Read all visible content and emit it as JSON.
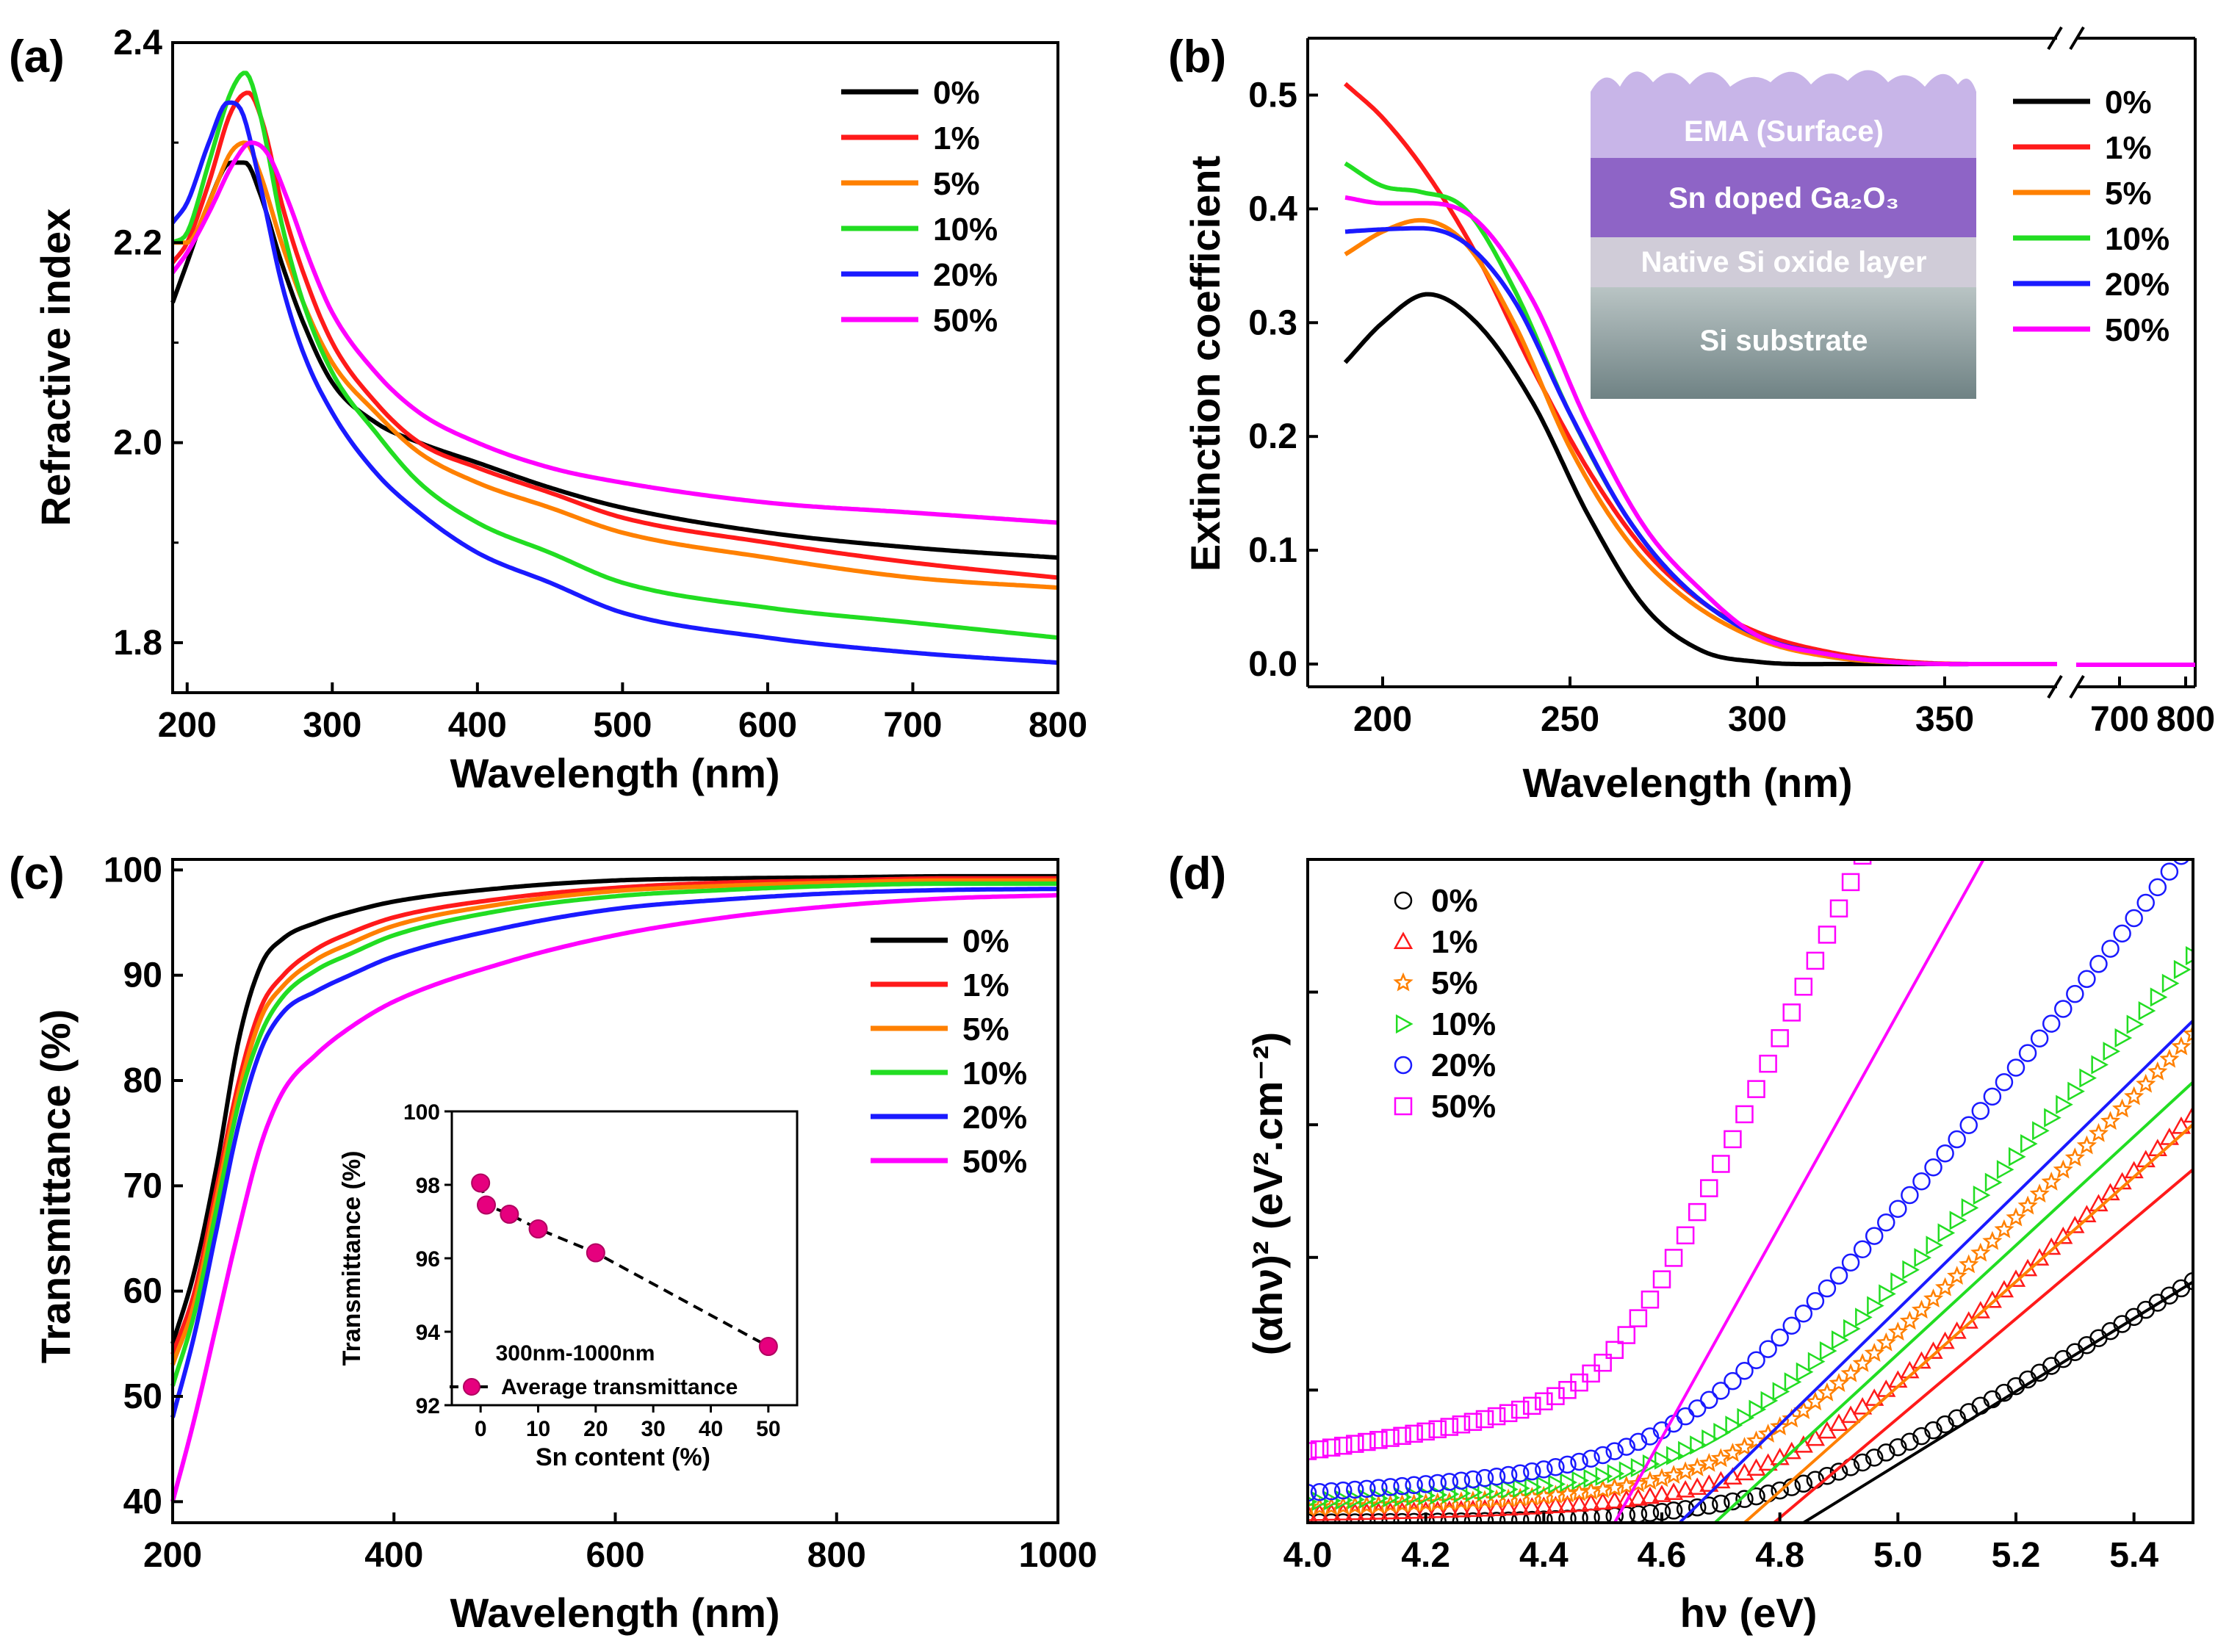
{
  "colors": {
    "0%": "#000000",
    "1%": "#ff1a1a",
    "5%": "#ff8000",
    "10%": "#22dd22",
    "20%": "#1a1aff",
    "50%": "#ff00ff"
  },
  "chart_data": [
    {
      "panel": "(a)",
      "type": "line",
      "xlabel": "Wavelength (nm)",
      "ylabel": "Refractive index",
      "xlim": [
        190,
        800
      ],
      "ylim": [
        1.75,
        2.4
      ],
      "xticks": [
        "200",
        "300",
        "400",
        "500",
        "600",
        "700",
        "800"
      ],
      "yticks": [
        "1.8",
        "2.0",
        "2.2",
        "2.4"
      ],
      "legend": [
        "0%",
        "1%",
        "5%",
        "10%",
        "20%",
        "50%"
      ],
      "series": [
        {
          "name": "0%",
          "x": [
            190,
            200,
            215,
            230,
            240,
            250,
            265,
            280,
            300,
            330,
            360,
            400,
            450,
            500,
            600,
            700,
            800
          ],
          "y": [
            2.14,
            2.18,
            2.24,
            2.28,
            2.28,
            2.25,
            2.18,
            2.12,
            2.06,
            2.02,
            2.0,
            1.98,
            1.955,
            1.935,
            1.91,
            1.895,
            1.885
          ]
        },
        {
          "name": "1%",
          "x": [
            190,
            200,
            215,
            230,
            242,
            252,
            265,
            280,
            300,
            330,
            360,
            400,
            450,
            500,
            600,
            700,
            800
          ],
          "y": [
            2.18,
            2.2,
            2.26,
            2.33,
            2.35,
            2.32,
            2.24,
            2.17,
            2.1,
            2.04,
            2.0,
            1.975,
            1.95,
            1.925,
            1.9,
            1.88,
            1.865
          ]
        },
        {
          "name": "5%",
          "x": [
            190,
            200,
            215,
            230,
            240,
            250,
            265,
            280,
            300,
            330,
            360,
            400,
            450,
            500,
            600,
            700,
            800
          ],
          "y": [
            2.2,
            2.2,
            2.24,
            2.29,
            2.3,
            2.27,
            2.2,
            2.14,
            2.08,
            2.03,
            1.99,
            1.96,
            1.935,
            1.91,
            1.885,
            1.865,
            1.855
          ]
        },
        {
          "name": "10%",
          "x": [
            190,
            200,
            215,
            230,
            240,
            250,
            265,
            280,
            300,
            330,
            360,
            400,
            450,
            500,
            600,
            700,
            800
          ],
          "y": [
            2.2,
            2.21,
            2.28,
            2.35,
            2.37,
            2.33,
            2.22,
            2.14,
            2.07,
            2.01,
            1.96,
            1.92,
            1.89,
            1.86,
            1.835,
            1.82,
            1.805
          ]
        },
        {
          "name": "20%",
          "x": [
            190,
            200,
            215,
            228,
            238,
            250,
            265,
            280,
            300,
            330,
            360,
            400,
            450,
            500,
            600,
            700,
            800
          ],
          "y": [
            2.22,
            2.24,
            2.3,
            2.34,
            2.33,
            2.26,
            2.16,
            2.09,
            2.03,
            1.97,
            1.93,
            1.89,
            1.86,
            1.83,
            1.805,
            1.79,
            1.78
          ]
        },
        {
          "name": "50%",
          "x": [
            190,
            200,
            215,
            232,
            244,
            255,
            270,
            285,
            300,
            330,
            360,
            400,
            450,
            500,
            600,
            700,
            800
          ],
          "y": [
            2.17,
            2.19,
            2.23,
            2.28,
            2.3,
            2.29,
            2.24,
            2.18,
            2.13,
            2.07,
            2.03,
            2.0,
            1.975,
            1.96,
            1.94,
            1.93,
            1.92
          ]
        }
      ]
    },
    {
      "panel": "(b)",
      "type": "line",
      "xlabel": "Wavelength (nm)",
      "ylabel": "Extinction coefficient",
      "xlim": [
        180,
        380
      ],
      "ylim": [
        -0.02,
        0.55
      ],
      "broken_axis": true,
      "xticks": [
        "200",
        "250",
        "300",
        "350",
        "700",
        "800"
      ],
      "yticks": [
        "0.0",
        "0.1",
        "0.2",
        "0.3",
        "0.4",
        "0.5"
      ],
      "legend": [
        "0%",
        "1%",
        "5%",
        "10%",
        "20%",
        "50%"
      ],
      "inset_layers": [
        "EMA (Surface)",
        "Sn doped Ga₂O₃",
        "Native Si oxide layer",
        "Si substrate"
      ],
      "series": [
        {
          "name": "0%",
          "x": [
            190,
            200,
            212,
            225,
            240,
            255,
            270,
            285,
            300,
            320,
            380
          ],
          "y": [
            0.265,
            0.3,
            0.325,
            0.3,
            0.23,
            0.13,
            0.05,
            0.012,
            0.002,
            0.0,
            0.0
          ]
        },
        {
          "name": "1%",
          "x": [
            190,
            200,
            212,
            225,
            240,
            255,
            270,
            285,
            300,
            320,
            340,
            360,
            380
          ],
          "y": [
            0.51,
            0.48,
            0.43,
            0.36,
            0.26,
            0.17,
            0.1,
            0.055,
            0.028,
            0.01,
            0.002,
            0.0,
            0.0
          ]
        },
        {
          "name": "5%",
          "x": [
            190,
            200,
            210,
            222,
            235,
            250,
            265,
            280,
            300,
            320,
            340,
            360,
            380
          ],
          "y": [
            0.36,
            0.38,
            0.39,
            0.37,
            0.3,
            0.19,
            0.11,
            0.06,
            0.022,
            0.006,
            0.001,
            0.0,
            0.0
          ]
        },
        {
          "name": "10%",
          "x": [
            190,
            200,
            210,
            222,
            235,
            250,
            265,
            280,
            300,
            320,
            340,
            360,
            380
          ],
          "y": [
            0.44,
            0.42,
            0.415,
            0.4,
            0.33,
            0.22,
            0.13,
            0.07,
            0.025,
            0.008,
            0.001,
            0.0,
            0.0
          ]
        },
        {
          "name": "20%",
          "x": [
            190,
            200,
            210,
            222,
            235,
            250,
            265,
            280,
            300,
            320,
            340,
            360,
            380
          ],
          "y": [
            0.38,
            0.382,
            0.383,
            0.37,
            0.32,
            0.22,
            0.13,
            0.07,
            0.025,
            0.008,
            0.001,
            0.0,
            0.0
          ]
        },
        {
          "name": "50%",
          "x": [
            190,
            200,
            212,
            225,
            240,
            255,
            270,
            285,
            300,
            320,
            340,
            360,
            380
          ],
          "y": [
            0.41,
            0.405,
            0.405,
            0.39,
            0.32,
            0.21,
            0.12,
            0.065,
            0.025,
            0.008,
            0.001,
            0.0,
            0.0
          ]
        }
      ]
    },
    {
      "panel": "(c)",
      "type": "line",
      "xlabel": "Wavelength (nm)",
      "ylabel": "Transmittance (%)",
      "xlim": [
        200,
        1000
      ],
      "ylim": [
        38,
        101
      ],
      "xticks": [
        "200",
        "400",
        "600",
        "800",
        "1000"
      ],
      "yticks": [
        "40",
        "50",
        "60",
        "70",
        "80",
        "90",
        "100"
      ],
      "legend": [
        "0%",
        "1%",
        "5%",
        "10%",
        "20%",
        "50%"
      ],
      "series": [
        {
          "name": "0%",
          "x": [
            200,
            220,
            240,
            260,
            280,
            300,
            330,
            360,
            400,
            500,
            600,
            700,
            800,
            900,
            1000
          ],
          "y": [
            55,
            62,
            72,
            84,
            91,
            93.5,
            95,
            96,
            97,
            98.3,
            99,
            99.2,
            99.3,
            99.4,
            99.4
          ]
        },
        {
          "name": "1%",
          "x": [
            200,
            220,
            240,
            260,
            280,
            300,
            330,
            360,
            400,
            500,
            600,
            700,
            800,
            900,
            1000
          ],
          "y": [
            54,
            60,
            70,
            80,
            87,
            90,
            92.5,
            94,
            95.5,
            97.3,
            98.3,
            98.8,
            99,
            99.2,
            99.2
          ]
        },
        {
          "name": "5%",
          "x": [
            200,
            220,
            240,
            260,
            280,
            300,
            330,
            360,
            400,
            500,
            600,
            700,
            800,
            900,
            1000
          ],
          "y": [
            53,
            59,
            69,
            79,
            86,
            89,
            91.5,
            93,
            94.7,
            96.8,
            98,
            98.5,
            98.8,
            99,
            99
          ]
        },
        {
          "name": "10%",
          "x": [
            200,
            220,
            240,
            260,
            280,
            300,
            330,
            360,
            400,
            500,
            600,
            700,
            800,
            900,
            1000
          ],
          "y": [
            51,
            58,
            68,
            78,
            84.5,
            88,
            90.5,
            92,
            93.8,
            96.2,
            97.5,
            98.1,
            98.5,
            98.7,
            98.7
          ]
        },
        {
          "name": "20%",
          "x": [
            200,
            220,
            240,
            260,
            280,
            300,
            330,
            360,
            400,
            500,
            600,
            700,
            800,
            900,
            1000
          ],
          "y": [
            48,
            56,
            66,
            76,
            83,
            86.5,
            88.5,
            90,
            91.8,
            94.5,
            96.3,
            97.2,
            97.8,
            98.1,
            98.2
          ]
        },
        {
          "name": "50%",
          "x": [
            200,
            220,
            240,
            260,
            280,
            300,
            330,
            360,
            400,
            500,
            600,
            700,
            800,
            900,
            1000
          ],
          "y": [
            40,
            48,
            57,
            66,
            74,
            79,
            82.5,
            85,
            87.5,
            91.2,
            93.8,
            95.5,
            96.6,
            97.3,
            97.6
          ]
        }
      ],
      "inset": {
        "type": "scatter",
        "xlabel": "Sn content (%)",
        "ylabel": "Transmittance (%)",
        "xlim": [
          -5,
          55
        ],
        "ylim": [
          92,
          100
        ],
        "xticks": [
          "0",
          "10",
          "20",
          "30",
          "40",
          "50"
        ],
        "yticks": [
          "92",
          "94",
          "96",
          "98",
          "100"
        ],
        "annotation": "300nm-1000nm",
        "legend": "Average transmittance",
        "x": [
          0,
          1,
          5,
          10,
          20,
          50
        ],
        "y": [
          98.05,
          97.45,
          97.2,
          96.8,
          96.15,
          93.6
        ]
      }
    },
    {
      "panel": "(d)",
      "type": "scatter",
      "xlabel": "hν (eV)",
      "ylabel": "(αhν)² (eV².cm⁻²)",
      "xlim": [
        4.0,
        5.5
      ],
      "ylim": [
        0,
        1
      ],
      "xticks": [
        "4.0",
        "4.2",
        "4.4",
        "4.6",
        "4.8",
        "5.0",
        "5.2",
        "5.4"
      ],
      "legend": [
        "0%",
        "1%",
        "5%",
        "10%",
        "20%",
        "50%"
      ],
      "markers": {
        "0%": "circle",
        "1%": "triangle-up",
        "5%": "star",
        "10%": "triangle-right",
        "20%": "circle",
        "50%": "square"
      },
      "bandgaps_eV": {
        "0%": 4.84,
        "1%": 4.79,
        "5%": 4.74,
        "10%": 4.69,
        "20%": 4.63,
        "50%": 4.52
      },
      "fit_slopes": {
        "0%": 0.55,
        "1%": 0.75,
        "5%": 0.79,
        "10%": 0.82,
        "20%": 0.87,
        "50%": 1.6
      },
      "onset_offsets": {
        "0%": 0.0,
        "1%": 0.015,
        "5%": 0.025,
        "10%": 0.035,
        "20%": 0.05,
        "50%": 0.12
      }
    }
  ]
}
